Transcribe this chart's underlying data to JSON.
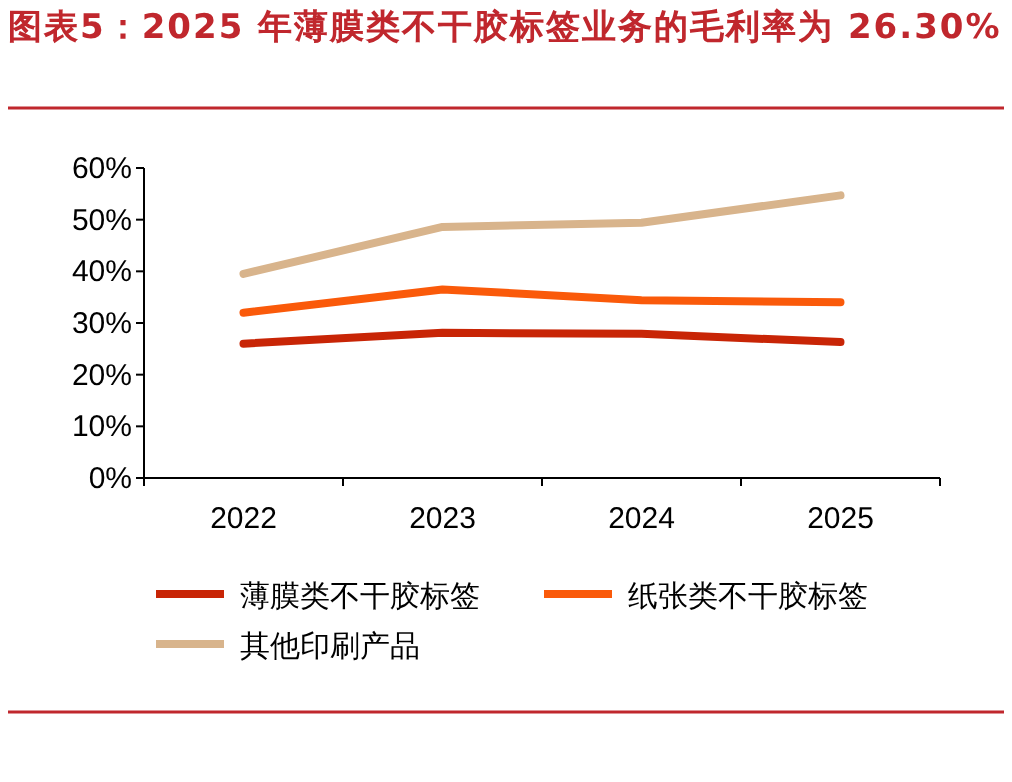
{
  "chart_data": {
    "type": "line",
    "title": "图表5：2025 年薄膜类不干胶标签业务的毛利率为 26.30%",
    "categories": [
      "2022",
      "2023",
      "2024",
      "2025"
    ],
    "series": [
      {
        "name": "薄膜类不干胶标签",
        "color": "#c82506",
        "values": [
          26.0,
          28.1,
          27.9,
          26.3
        ]
      },
      {
        "name": "纸张类不干胶标签",
        "color": "#fa5a0a",
        "values": [
          32.0,
          36.5,
          34.4,
          34.0
        ]
      },
      {
        "name": "其他印刷产品",
        "color": "#d8b48c",
        "values": [
          39.5,
          48.6,
          49.4,
          54.7
        ]
      }
    ],
    "ylim": [
      0,
      60
    ],
    "yticks": [
      {
        "value": 0,
        "label": "0%"
      },
      {
        "value": 10,
        "label": "10%"
      },
      {
        "value": 20,
        "label": "20%"
      },
      {
        "value": 30,
        "label": "30%"
      },
      {
        "value": 40,
        "label": "40%"
      },
      {
        "value": 50,
        "label": "50%"
      },
      {
        "value": 60,
        "label": "60%"
      }
    ],
    "grid": false,
    "legend": "bottom",
    "marker": "none",
    "line_style": "solid"
  }
}
